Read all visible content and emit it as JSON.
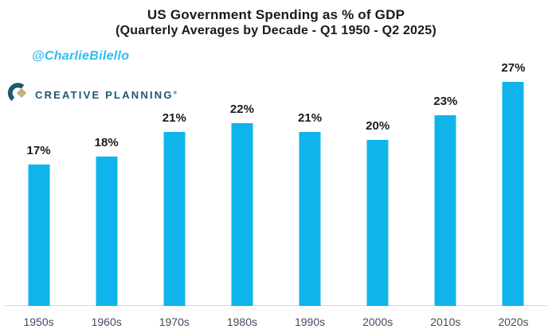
{
  "header": {
    "title": "US Government Spending as % of GDP",
    "subtitle": "(Quarterly Averages by Decade - Q1 1950 - Q2 2025)"
  },
  "watermark": {
    "handle": "@CharlieBilello"
  },
  "logo": {
    "name": "CREATIVE PLANNING",
    "trademark": "®"
  },
  "chart_data": {
    "type": "bar",
    "categories": [
      "1950s",
      "1960s",
      "1970s",
      "1980s",
      "1990s",
      "2000s",
      "2010s",
      "2020s"
    ],
    "values": [
      17,
      18,
      21,
      22,
      21,
      20,
      23,
      27
    ],
    "data_labels": [
      "17%",
      "18%",
      "21%",
      "22%",
      "21%",
      "20%",
      "23%",
      "27%"
    ],
    "title": "US Government Spending as % of GDP",
    "subtitle": "(Quarterly Averages by Decade - Q1 1950 - Q2 2025)",
    "xlabel": "",
    "ylabel": "",
    "ylim": [
      0,
      28
    ],
    "grid": false,
    "legend": "none",
    "bar_color": "#0fb5ea",
    "axis_line_color": "#d9d9d9",
    "label_color": "#1a1a1a",
    "tick_label_color": "#434b5c"
  },
  "colors": {
    "bar": "#0fb5ea",
    "watermark": "#2cbef2",
    "logo_mark_teal": "#1e5a6e",
    "logo_mark_gold": "#c7af7c",
    "logo_text": "#1f5673",
    "axis_line": "#d9d9d9"
  }
}
